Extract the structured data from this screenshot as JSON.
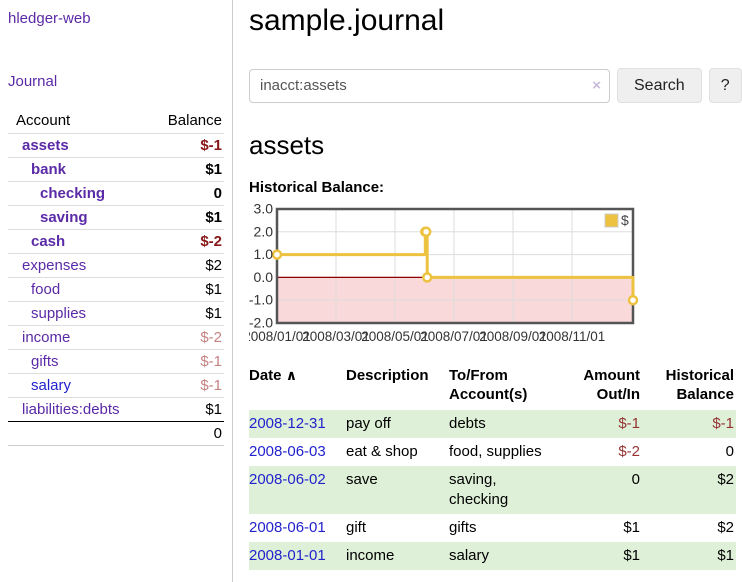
{
  "palette": {
    "accent_purple": "#5b2aa6",
    "link_blue": "#2222cc",
    "negative_strong": "#871717",
    "negative_soft": "#c58282",
    "negative_table": "#953333",
    "row_green": "#dff0d8",
    "divider_gray": "#cccccc"
  },
  "sidebar": {
    "brand": "hledger-web",
    "nav": {
      "journal": "Journal"
    },
    "accounts_table": {
      "headers": {
        "account": "Account",
        "balance": "Balance"
      },
      "rows": [
        {
          "name": "assets",
          "indent": 0,
          "bold": true,
          "balance": "$-1",
          "balance_style": "neg-strong"
        },
        {
          "name": "bank",
          "indent": 1,
          "bold": true,
          "balance": "$1",
          "balance_style": "pos"
        },
        {
          "name": "checking",
          "indent": 2,
          "bold": true,
          "balance": "0",
          "balance_style": "pos"
        },
        {
          "name": "saving",
          "indent": 2,
          "bold": true,
          "balance": "$1",
          "balance_style": "pos"
        },
        {
          "name": "cash",
          "indent": 1,
          "bold": true,
          "balance": "$-2",
          "balance_style": "neg-strong"
        },
        {
          "name": "expenses",
          "indent": 0,
          "bold": false,
          "balance": "$2",
          "balance_style": "pos"
        },
        {
          "name": "food",
          "indent": 1,
          "bold": false,
          "balance": "$1",
          "balance_style": "pos"
        },
        {
          "name": "supplies",
          "indent": 1,
          "bold": false,
          "balance": "$1",
          "balance_style": "pos"
        },
        {
          "name": "income",
          "indent": 0,
          "bold": false,
          "balance": "$-2",
          "balance_style": "neg-soft"
        },
        {
          "name": "gifts",
          "indent": 1,
          "bold": false,
          "balance": "$-1",
          "balance_style": "neg-soft"
        },
        {
          "name": "salary",
          "indent": 1,
          "bold": false,
          "link_color": "blue",
          "balance": "$-1",
          "balance_style": "neg-soft"
        },
        {
          "name": "liabilities:debts",
          "indent": 0,
          "bold": false,
          "balance": "$1",
          "balance_style": "pos"
        }
      ],
      "total": "0"
    }
  },
  "header": {
    "title": "sample.journal"
  },
  "search": {
    "value": "inacct:assets",
    "clear_icon": "×",
    "button": "Search",
    "help_button": "?"
  },
  "account_page": {
    "title": "assets",
    "chart_label": "Historical Balance:"
  },
  "chart_data": {
    "type": "line",
    "subtype": "step",
    "title": "",
    "xlabel": "",
    "ylabel": "",
    "series": [
      {
        "name": "$",
        "points": [
          [
            "2008-01-01",
            1
          ],
          [
            "2008-06-01",
            2
          ],
          [
            "2008-06-02",
            2
          ],
          [
            "2008-06-03",
            0
          ],
          [
            "2008-12-31",
            -1
          ]
        ]
      }
    ],
    "ylim": [
      -2,
      3
    ],
    "yticks": [
      "3.0",
      "2.0",
      "1.0",
      "0.0",
      "-1.0",
      "-2.0"
    ],
    "xticks": [
      "2008/01/01",
      "2008/03/01",
      "2008/05/01",
      "2008/07/01",
      "2008/09/01",
      "2008/11/01"
    ],
    "legend": {
      "label": "$",
      "position": "top-right",
      "swatch_color": "#EDC240"
    },
    "grid": true,
    "colors": {
      "line": "#EDC240",
      "marker_fill": "#ffffff",
      "negative_region_fill": "#f9d9d9",
      "zero_line": "#8b0000",
      "grid": "#dddddd",
      "border": "#555555"
    }
  },
  "register": {
    "headers": {
      "date": "Date",
      "sort_icon": "∧",
      "description": "Description",
      "tofrom_line1": "To/From",
      "tofrom_line2": "Account(s)",
      "amount_line1": "Amount",
      "amount_line2": "Out/In",
      "balance_line1": "Historical",
      "balance_line2": "Balance"
    },
    "rows": [
      {
        "date": "2008-12-31",
        "description": "pay off",
        "accounts": "debts",
        "amount": "$-1",
        "balance": "$-1",
        "shaded": true
      },
      {
        "date": "2008-06-03",
        "description": "eat & shop",
        "accounts": "food, supplies",
        "amount": "$-2",
        "balance": "0",
        "shaded": false
      },
      {
        "date": "2008-06-02",
        "description": "save",
        "accounts": "saving, checking",
        "amount": "0",
        "balance": "$2",
        "shaded": true
      },
      {
        "date": "2008-06-01",
        "description": "gift",
        "accounts": "gifts",
        "amount": "$1",
        "balance": "$2",
        "shaded": false
      },
      {
        "date": "2008-01-01",
        "description": "income",
        "accounts": "salary",
        "amount": "$1",
        "balance": "$1",
        "shaded": true
      }
    ]
  }
}
